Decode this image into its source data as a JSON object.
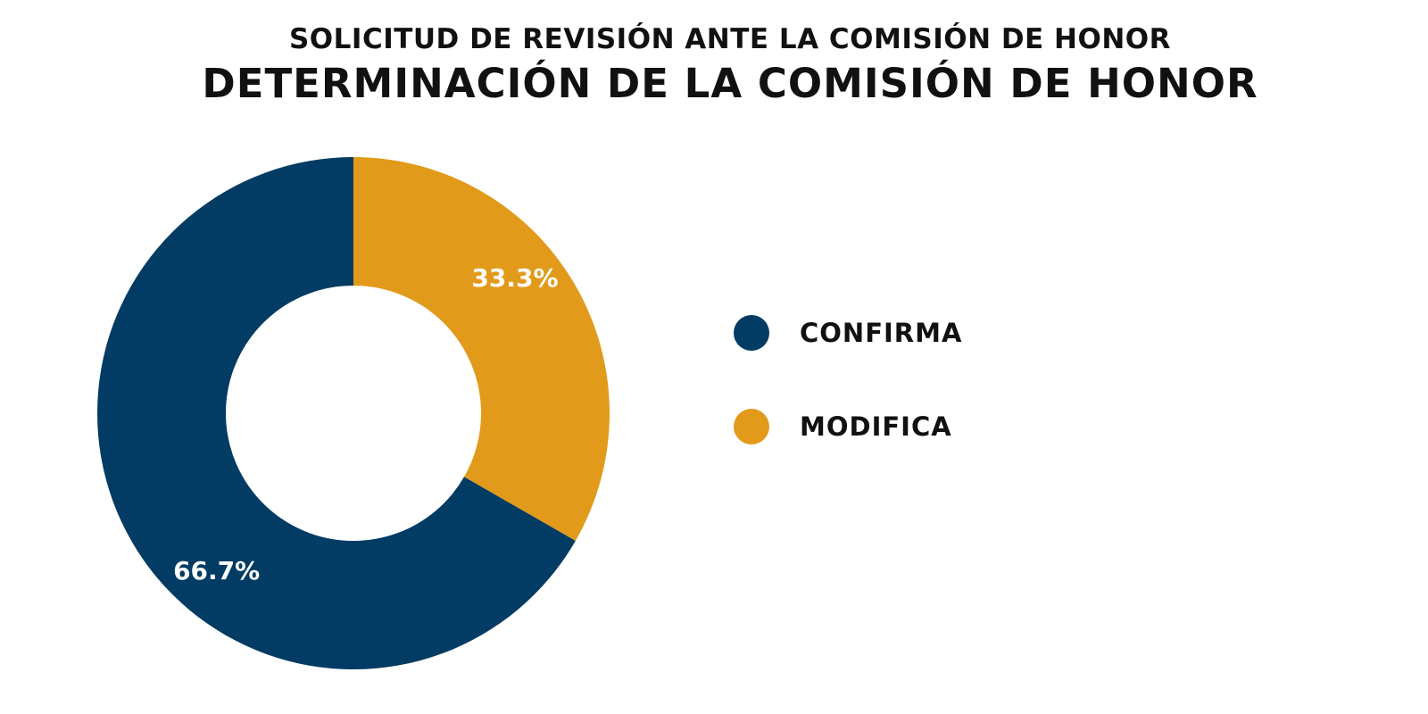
{
  "chart_data": {
    "type": "pie",
    "variant": "donut",
    "subtitle": "SOLICITUD DE REVISIÓN ANTE LA COMISIÓN DE HONOR",
    "title": "DETERMINACIÓN DE LA COMISIÓN DE HONOR",
    "categories": [
      "CONFIRMA",
      "MODIFICA"
    ],
    "values": [
      66.7,
      33.3
    ],
    "data_labels": [
      "66.7%",
      "33.3%"
    ],
    "colors": [
      "#023b63",
      "#e29a1b"
    ],
    "legend_position": "right"
  }
}
